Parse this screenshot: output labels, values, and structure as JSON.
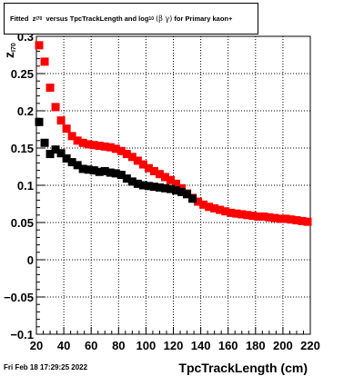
{
  "title": {
    "fitted": "Fitted",
    "z": "z",
    "z_sub": "I70",
    "mid": "versus TpcTrackLength and log",
    "log_sub": "10",
    "greek": "(β  γ)",
    "tail": "for Primary kaon+"
  },
  "timestamp": "Fri Feb 18 17:29:25 2022",
  "xlabel": "TpcTrackLength (cm)",
  "ylabel": {
    "main": "z",
    "sub": "I70"
  },
  "chart_data": {
    "type": "scatter",
    "xlim": [
      20,
      220
    ],
    "ylim": [
      -0.1,
      0.3
    ],
    "x_ticks": [
      20,
      40,
      60,
      80,
      100,
      120,
      140,
      160,
      180,
      200,
      220
    ],
    "y_ticks": [
      -0.1,
      -0.05,
      0,
      0.05,
      0.1,
      0.15,
      0.2,
      0.25,
      0.3
    ],
    "x_tick_labels": [
      "20",
      "40",
      "60",
      "80",
      "100",
      "120",
      "140",
      "160",
      "180",
      "200",
      "220"
    ],
    "y_tick_labels": [
      "−0.1",
      "−0.05",
      "0",
      "0.05",
      "0.1",
      "0.15",
      "0.2",
      "0.25",
      "0.3"
    ],
    "grid": true,
    "series": [
      {
        "color": "#ff0000",
        "x": [
          22,
          26,
          30,
          34,
          38,
          42,
          46,
          50,
          54,
          58,
          62,
          66,
          70,
          74,
          78,
          82,
          86,
          90,
          94,
          98,
          102,
          106,
          110,
          114,
          118,
          122,
          126,
          130,
          134,
          138,
          142,
          146,
          150,
          154,
          158,
          162,
          166,
          170,
          174,
          178,
          182,
          186,
          190,
          194,
          198,
          202,
          206,
          210,
          214,
          218
        ],
        "y": [
          0.288,
          0.266,
          0.231,
          0.205,
          0.187,
          0.176,
          0.166,
          0.16,
          0.157,
          0.155,
          0.154,
          0.153,
          0.152,
          0.151,
          0.149,
          0.146,
          0.142,
          0.138,
          0.133,
          0.128,
          0.123,
          0.119,
          0.115,
          0.111,
          0.107,
          0.102,
          0.096,
          0.089,
          0.083,
          0.078,
          0.074,
          0.071,
          0.069,
          0.067,
          0.065,
          0.063,
          0.062,
          0.061,
          0.06,
          0.059,
          0.058,
          0.058,
          0.057,
          0.056,
          0.055,
          0.055,
          0.054,
          0.053,
          0.052,
          0.051
        ]
      },
      {
        "color": "#000000",
        "x": [
          22,
          26,
          30,
          34,
          38,
          42,
          46,
          50,
          54,
          58,
          62,
          66,
          70,
          74,
          78,
          82,
          86,
          90,
          94,
          98,
          102,
          106,
          110,
          114,
          118,
          122,
          126,
          130,
          134
        ],
        "y": [
          0.185,
          0.157,
          0.142,
          0.148,
          0.143,
          0.136,
          0.131,
          0.127,
          0.122,
          0.121,
          0.12,
          0.118,
          0.119,
          0.117,
          0.116,
          0.114,
          0.109,
          0.105,
          0.102,
          0.1,
          0.099,
          0.098,
          0.097,
          0.096,
          0.095,
          0.093,
          0.091,
          0.088,
          0.082
        ]
      }
    ]
  }
}
